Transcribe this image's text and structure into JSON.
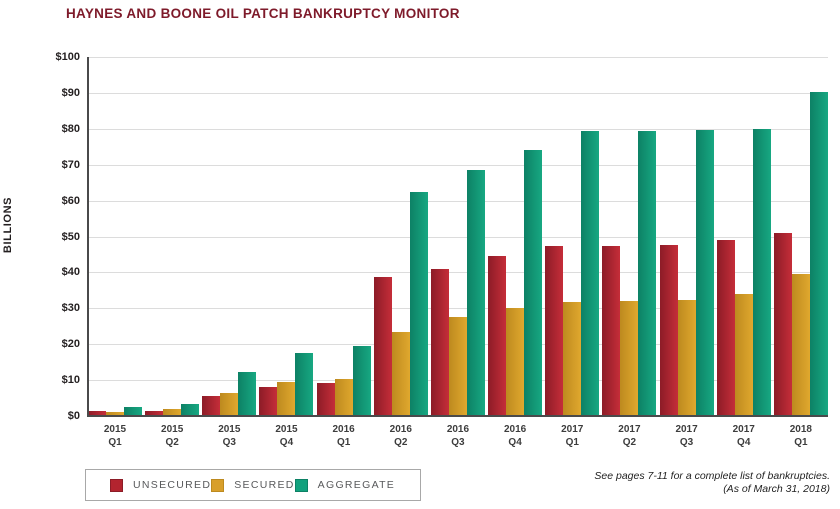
{
  "title": "HAYNES AND BOONE OIL PATCH BANKRUPTCY MONITOR",
  "footnote": {
    "line1": "See pages 7-11 for a complete list of bankruptcies.",
    "line2": "(As of March 31, 2018)"
  },
  "colors": {
    "title_text": "#7e1a2a",
    "axis_line": "#4a4a4b",
    "gridline": "#dcdcdc",
    "tick_text": "#231f20",
    "legend_border": "#a8a8a8",
    "legend_text": "#58595b"
  },
  "chart_data": {
    "type": "bar",
    "title": "HAYNES AND BOONE OIL PATCH BANKRUPTCY MONITOR",
    "xlabel": "",
    "ylabel": "BILLIONS",
    "ylim": [
      0,
      100
    ],
    "ytick_step": 10,
    "yticks": [
      "$0",
      "$10",
      "$20",
      "$30",
      "$40",
      "$50",
      "$60",
      "$70",
      "$80",
      "$90",
      "$100"
    ],
    "grid": true,
    "legend_position": "bottom-left",
    "categories": [
      {
        "line1": "2015",
        "line2": "Q1"
      },
      {
        "line1": "2015",
        "line2": "Q2"
      },
      {
        "line1": "2015",
        "line2": "Q3"
      },
      {
        "line1": "2015",
        "line2": "Q4"
      },
      {
        "line1": "2016",
        "line2": "Q1"
      },
      {
        "line1": "2016",
        "line2": "Q2"
      },
      {
        "line1": "2016",
        "line2": "Q3"
      },
      {
        "line1": "2016",
        "line2": "Q4"
      },
      {
        "line1": "2017",
        "line2": "Q1"
      },
      {
        "line1": "2017",
        "line2": "Q2"
      },
      {
        "line1": "2017",
        "line2": "Q3"
      },
      {
        "line1": "2017",
        "line2": "Q4"
      },
      {
        "line1": "2018",
        "line2": "Q1"
      }
    ],
    "series": [
      {
        "name": "UNSECURED",
        "color": "#b3242f",
        "gradient": [
          "#8c1c27",
          "#c52d39"
        ],
        "values": [
          1.3,
          1.4,
          5.5,
          8.0,
          9.2,
          38.7,
          40.9,
          44.5,
          47.5,
          47.5,
          47.6,
          48.9,
          51.0
        ]
      },
      {
        "name": "SECURED",
        "color": "#d89f2b",
        "gradient": [
          "#bd8a1f",
          "#e0a82e"
        ],
        "values": [
          1.0,
          1.9,
          6.5,
          9.5,
          10.4,
          23.5,
          27.5,
          30.0,
          31.8,
          32.0,
          32.2,
          34.0,
          39.5
        ]
      },
      {
        "name": "AGGREGATE",
        "color": "#11a17d",
        "gradient": [
          "#0d8165",
          "#17a882"
        ],
        "values": [
          2.6,
          3.4,
          12.2,
          17.6,
          19.6,
          62.3,
          68.4,
          74.2,
          79.3,
          79.4,
          79.6,
          80.0,
          90.4
        ]
      }
    ]
  }
}
